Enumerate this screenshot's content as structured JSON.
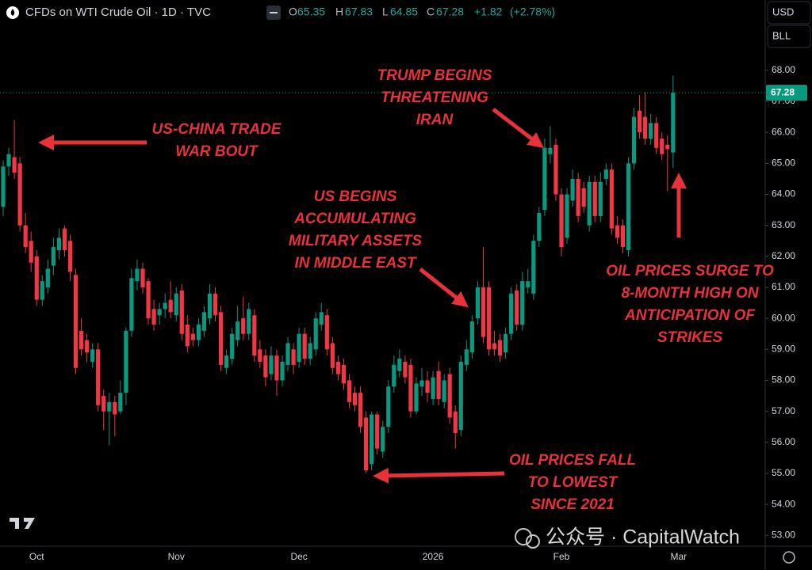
{
  "chart_data": {
    "type": "candlestick",
    "title": "CFDs on WTI Crude Oil · 1D · TVC",
    "ohlc_letters": [
      "O",
      "H",
      "L",
      "C"
    ],
    "change": "+1.82",
    "change_pct": "(+2.78%)",
    "up_color": "#089981",
    "down_color": "#f23645",
    "grid": false,
    "ylim": [
      52.7,
      70.27
    ],
    "yticks": [
      {
        "value": 53,
        "label": "53.00"
      },
      {
        "value": 54,
        "label": "54.00"
      },
      {
        "value": 55,
        "label": "55.00"
      },
      {
        "value": 56,
        "label": "56.00"
      },
      {
        "value": 57,
        "label": "57.00"
      },
      {
        "value": 58,
        "label": "58.00"
      },
      {
        "value": 59,
        "label": "59.00"
      },
      {
        "value": 60,
        "label": "60.00"
      },
      {
        "value": 61,
        "label": "61.00"
      },
      {
        "value": 62,
        "label": "62.00"
      },
      {
        "value": 63,
        "label": "63.00"
      },
      {
        "value": 64,
        "label": "64.00"
      },
      {
        "value": 65,
        "label": "65.00"
      },
      {
        "value": 66,
        "label": "66.00"
      },
      {
        "value": 67,
        "label": "67.00"
      },
      {
        "value": 68,
        "label": "68.00"
      }
    ],
    "categories": [
      null,
      null,
      null,
      null,
      null,
      null,
      "Oct",
      null,
      null,
      null,
      null,
      null,
      null,
      null,
      null,
      null,
      null,
      null,
      null,
      null,
      null,
      null,
      null,
      null,
      null,
      null,
      null,
      null,
      null,
      null,
      null,
      "Nov",
      null,
      null,
      null,
      null,
      null,
      null,
      null,
      null,
      null,
      null,
      null,
      null,
      null,
      null,
      null,
      null,
      null,
      null,
      null,
      null,
      null,
      "Dec",
      null,
      null,
      null,
      null,
      null,
      null,
      null,
      null,
      null,
      null,
      null,
      null,
      null,
      null,
      null,
      null,
      null,
      null,
      null,
      null,
      null,
      null,
      null,
      "2026",
      null,
      null,
      null,
      null,
      null,
      null,
      null,
      null,
      null,
      null,
      null,
      null,
      null,
      null,
      null,
      null,
      null,
      null,
      null,
      null,
      null,
      null,
      "Feb",
      null,
      null,
      null,
      null,
      null,
      null,
      null,
      null,
      null,
      null,
      null,
      null,
      null,
      null,
      null,
      null,
      null,
      null,
      null,
      null,
      "Mar"
    ],
    "ohlc": [
      [
        63.6,
        65.1,
        63.3,
        64.9
      ],
      [
        64.9,
        65.5,
        64.6,
        65.3
      ],
      [
        65.2,
        66.4,
        64.5,
        64.7
      ],
      [
        65.0,
        65.2,
        62.8,
        63.0
      ],
      [
        63.0,
        63.4,
        62.1,
        62.3
      ],
      [
        62.5,
        62.8,
        61.5,
        61.8
      ],
      [
        62.0,
        62.2,
        60.4,
        60.6
      ],
      [
        60.6,
        61.4,
        60.4,
        61.2
      ],
      [
        61.0,
        61.9,
        60.8,
        61.6
      ],
      [
        61.7,
        62.6,
        61.4,
        62.3
      ],
      [
        62.2,
        62.9,
        61.9,
        62.6
      ],
      [
        62.9,
        63.0,
        62.0,
        62.2
      ],
      [
        62.5,
        62.7,
        61.2,
        61.5
      ],
      [
        61.4,
        61.6,
        58.2,
        58.4
      ],
      [
        59.6,
        60.0,
        58.8,
        59.0
      ],
      [
        59.3,
        59.5,
        58.6,
        58.9
      ],
      [
        58.6,
        59.2,
        58.4,
        59.0
      ],
      [
        59.0,
        59.2,
        57.0,
        57.2
      ],
      [
        57.5,
        57.7,
        56.4,
        57.0
      ],
      [
        57.0,
        57.6,
        55.9,
        57.3
      ],
      [
        57.3,
        57.5,
        56.2,
        56.9
      ],
      [
        57.0,
        58.0,
        56.9,
        57.6
      ],
      [
        57.6,
        59.7,
        57.2,
        59.6
      ],
      [
        59.6,
        61.6,
        59.4,
        61.3
      ],
      [
        61.2,
        61.9,
        60.9,
        61.6
      ],
      [
        61.6,
        61.8,
        60.8,
        61.0
      ],
      [
        61.2,
        61.3,
        59.8,
        60.0
      ],
      [
        60.3,
        60.6,
        59.6,
        59.8
      ],
      [
        60.1,
        60.5,
        59.8,
        60.3
      ],
      [
        60.3,
        60.8,
        60.0,
        60.5
      ],
      [
        60.6,
        61.2,
        60.0,
        60.2
      ],
      [
        60.1,
        61.0,
        59.9,
        60.8
      ],
      [
        60.9,
        61.1,
        59.3,
        59.5
      ],
      [
        59.8,
        60.1,
        58.9,
        59.1
      ],
      [
        59.5,
        59.7,
        59.1,
        59.3
      ],
      [
        59.3,
        60.0,
        59.1,
        59.8
      ],
      [
        59.6,
        60.4,
        59.4,
        60.2
      ],
      [
        60.0,
        61.1,
        59.8,
        60.8
      ],
      [
        60.8,
        61.0,
        59.9,
        60.1
      ],
      [
        60.2,
        60.4,
        58.3,
        58.5
      ],
      [
        58.4,
        59.0,
        58.2,
        58.8
      ],
      [
        58.7,
        59.7,
        58.5,
        59.5
      ],
      [
        59.3,
        60.4,
        59.1,
        59.9
      ],
      [
        60.0,
        60.7,
        59.3,
        59.5
      ],
      [
        59.5,
        60.5,
        59.3,
        60.3
      ],
      [
        60.1,
        60.3,
        58.6,
        58.8
      ],
      [
        59.0,
        59.3,
        58.4,
        58.6
      ],
      [
        58.8,
        59.0,
        57.8,
        58.1
      ],
      [
        58.2,
        59.1,
        58.0,
        58.8
      ],
      [
        58.8,
        59.0,
        57.5,
        58.0
      ],
      [
        58.0,
        58.8,
        57.8,
        58.6
      ],
      [
        58.5,
        59.4,
        58.3,
        59.2
      ],
      [
        59.0,
        59.2,
        58.2,
        58.5
      ],
      [
        58.6,
        59.7,
        58.4,
        59.5
      ],
      [
        59.5,
        59.7,
        58.5,
        58.7
      ],
      [
        58.7,
        59.4,
        58.5,
        59.2
      ],
      [
        59.0,
        60.2,
        58.8,
        60.0
      ],
      [
        59.8,
        60.5,
        59.6,
        60.2
      ],
      [
        60.1,
        60.3,
        58.8,
        59.0
      ],
      [
        59.2,
        59.4,
        58.2,
        58.4
      ],
      [
        58.6,
        58.8,
        58.0,
        58.2
      ],
      [
        58.5,
        58.7,
        57.7,
        57.9
      ],
      [
        58.0,
        58.2,
        57.1,
        57.3
      ],
      [
        57.6,
        57.8,
        57.0,
        57.2
      ],
      [
        57.6,
        57.8,
        56.3,
        56.5
      ],
      [
        56.8,
        57.0,
        55.0,
        55.1
      ],
      [
        55.3,
        57.0,
        55.1,
        56.9
      ],
      [
        56.9,
        57.0,
        55.6,
        55.8
      ],
      [
        55.7,
        56.7,
        55.5,
        56.5
      ],
      [
        56.5,
        58.0,
        56.3,
        57.8
      ],
      [
        57.8,
        58.8,
        57.6,
        58.5
      ],
      [
        58.3,
        59.0,
        58.1,
        58.7
      ],
      [
        58.6,
        58.8,
        57.9,
        58.1
      ],
      [
        58.5,
        58.7,
        56.8,
        57.0
      ],
      [
        57.0,
        58.1,
        56.9,
        57.9
      ],
      [
        57.8,
        58.4,
        57.5,
        58.0
      ],
      [
        58.0,
        58.3,
        57.3,
        57.6
      ],
      [
        57.4,
        58.3,
        57.2,
        58.1
      ],
      [
        58.3,
        58.6,
        57.2,
        57.4
      ],
      [
        57.3,
        58.2,
        57.1,
        58.0
      ],
      [
        58.2,
        58.4,
        56.6,
        56.8
      ],
      [
        57.0,
        57.2,
        55.8,
        56.3
      ],
      [
        56.4,
        58.8,
        56.2,
        58.6
      ],
      [
        58.5,
        59.3,
        58.3,
        59.0
      ],
      [
        58.9,
        60.1,
        58.7,
        59.9
      ],
      [
        60.0,
        61.2,
        59.8,
        61.0
      ],
      [
        61.0,
        62.3,
        59.2,
        59.4
      ],
      [
        61.0,
        61.2,
        58.8,
        59.0
      ],
      [
        59.2,
        59.6,
        58.8,
        59.0
      ],
      [
        59.3,
        59.5,
        58.6,
        58.8
      ],
      [
        58.9,
        59.7,
        58.7,
        59.5
      ],
      [
        59.5,
        61.0,
        59.3,
        60.8
      ],
      [
        60.9,
        61.1,
        59.6,
        59.8
      ],
      [
        59.8,
        61.5,
        59.6,
        61.2
      ],
      [
        61.0,
        61.6,
        60.8,
        61.2
      ],
      [
        60.8,
        62.7,
        60.6,
        62.5
      ],
      [
        62.5,
        63.6,
        62.3,
        63.4
      ],
      [
        63.5,
        65.8,
        63.3,
        65.5
      ],
      [
        65.3,
        66.2,
        65.0,
        65.5
      ],
      [
        65.6,
        65.8,
        63.8,
        64.0
      ],
      [
        64.0,
        64.2,
        62.0,
        62.3
      ],
      [
        62.6,
        64.2,
        62.4,
        64.0
      ],
      [
        63.8,
        64.8,
        63.6,
        64.5
      ],
      [
        64.5,
        64.7,
        63.1,
        63.3
      ],
      [
        64.2,
        64.4,
        63.4,
        63.6
      ],
      [
        63.0,
        64.6,
        62.8,
        64.4
      ],
      [
        64.4,
        64.6,
        63.1,
        63.3
      ],
      [
        63.3,
        64.7,
        63.1,
        64.4
      ],
      [
        64.5,
        65.0,
        64.3,
        64.8
      ],
      [
        64.8,
        65.0,
        62.7,
        62.9
      ],
      [
        63.0,
        63.3,
        62.4,
        62.6
      ],
      [
        63.0,
        63.2,
        62.1,
        62.3
      ],
      [
        62.2,
        65.2,
        62.0,
        65.0
      ],
      [
        65.0,
        66.8,
        64.8,
        66.5
      ],
      [
        66.7,
        67.2,
        65.8,
        66.0
      ],
      [
        66.5,
        67.3,
        65.6,
        65.8
      ],
      [
        65.8,
        66.6,
        65.6,
        66.3
      ],
      [
        66.3,
        66.5,
        65.3,
        65.5
      ],
      [
        65.8,
        66.0,
        65.1,
        65.3
      ],
      [
        65.6,
        65.9,
        64.1,
        65.46
      ],
      [
        65.35,
        67.83,
        64.85,
        67.28
      ],
      null
    ],
    "annotations": [
      {
        "lines": [
          "US-CHINA TRADE",
          "WAR BOUT"
        ]
      },
      {
        "lines": [
          "TRUMP BEGINS",
          "THREATENING",
          "IRAN"
        ]
      },
      {
        "lines": [
          "US BEGINS",
          "ACCUMULATING",
          "MILITARY ASSETS",
          "IN MIDDLE EAST"
        ]
      },
      {
        "lines": [
          "OIL PRICES SURGE TO",
          "8-MONTH HIGH ON",
          "ANTICIPATION OF",
          "STRIKES"
        ]
      },
      {
        "lines": [
          "OIL PRICES FALL",
          "TO LOWEST",
          "SINCE 2021"
        ]
      }
    ]
  },
  "toolbar": {
    "currency": "USD",
    "unit": "BLL"
  },
  "watermark": "公众号 · CapitalWatch"
}
